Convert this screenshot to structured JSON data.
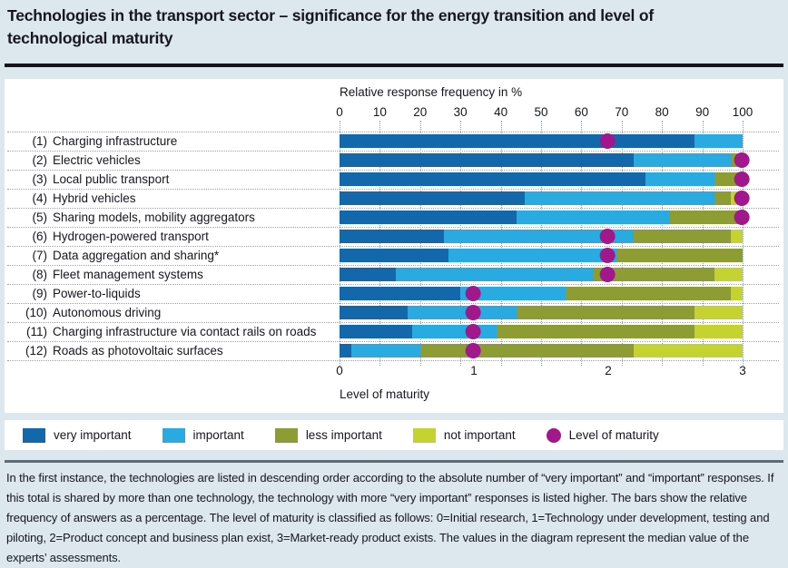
{
  "header": {
    "title": "Technologies in the transport sector – significance for the energy transition and level of technological maturity"
  },
  "chart_data": {
    "type": "bar",
    "orientation": "horizontal",
    "stacked": true,
    "grid": "dotted",
    "x_axis": {
      "label": "Relative response frequency in %",
      "ticks": [
        0,
        10,
        20,
        30,
        40,
        50,
        60,
        70,
        80,
        90,
        100
      ],
      "range": [
        0,
        100
      ]
    },
    "maturity_axis": {
      "label": "Level of maturity",
      "ticks": [
        0,
        1,
        2,
        3
      ],
      "range": [
        0,
        3
      ]
    },
    "series_names": [
      "very important",
      "important",
      "less important",
      "not important"
    ],
    "series_colors": [
      "#1268ab",
      "#29abe2",
      "#8e9d33",
      "#c5d330"
    ],
    "maturity_dot_color": "#a2178b",
    "rows": [
      {
        "num": "(1)",
        "name": "Charging infrastructure",
        "values": [
          88,
          12,
          0,
          0
        ],
        "maturity": 2
      },
      {
        "num": "(2)",
        "name": "Electric vehicles",
        "values": [
          73,
          24,
          3,
          0
        ],
        "maturity": 3
      },
      {
        "num": "(3)",
        "name": "Local public transport",
        "values": [
          76,
          17,
          7,
          0
        ],
        "maturity": 3
      },
      {
        "num": "(4)",
        "name": "Hybrid vehicles",
        "values": [
          46,
          47,
          4,
          3
        ],
        "maturity": 3
      },
      {
        "num": "(5)",
        "name": "Sharing models, mobility aggregators",
        "values": [
          44,
          38,
          18,
          0
        ],
        "maturity": 3
      },
      {
        "num": "(6)",
        "name": "Hydrogen-powered transport",
        "values": [
          26,
          47,
          24,
          3
        ],
        "maturity": 2
      },
      {
        "num": "(7)",
        "name": "Data aggregation and sharing*",
        "values": [
          27,
          42,
          31,
          0
        ],
        "maturity": 2
      },
      {
        "num": "(8)",
        "name": "Fleet management systems",
        "values": [
          14,
          49,
          30,
          7
        ],
        "maturity": 2
      },
      {
        "num": "(9)",
        "name": "Power-to-liquids",
        "values": [
          30,
          26,
          41,
          3
        ],
        "maturity": 1
      },
      {
        "num": "(10)",
        "name": "Autonomous driving",
        "values": [
          17,
          27,
          44,
          12
        ],
        "maturity": 1
      },
      {
        "num": "(11)",
        "name": "Charging infrastructure via contact rails on roads",
        "values": [
          18,
          21,
          49,
          12
        ],
        "maturity": 1
      },
      {
        "num": "(12)",
        "name": "Roads as photovoltaic surfaces",
        "values": [
          3,
          17,
          53,
          27
        ],
        "maturity": 1
      }
    ],
    "legend": [
      {
        "label": "very important",
        "shape": "swatch",
        "color": "#1268ab"
      },
      {
        "label": "important",
        "shape": "swatch",
        "color": "#29abe2"
      },
      {
        "label": "less important",
        "shape": "swatch",
        "color": "#8e9d33"
      },
      {
        "label": "not important",
        "shape": "swatch",
        "color": "#c5d330"
      },
      {
        "label": "Level of maturity",
        "shape": "dot",
        "color": "#a2178b"
      }
    ]
  },
  "footnote": {
    "text": "In the first instance, the technologies are listed in descending order according to the absolute number of “very important” and “important” responses. If this total is shared by more than one technology, the technology with more “very important” responses is listed higher. The bars show the relative frequency of answers as a percentage. The level of maturity is classified as follows: 0=Initial research, 1=Technology under development, testing and piloting, 2=Product concept and business plan exist, 3=Market-ready product exists. The values in the diagram represent the median value of the experts’ assessments."
  },
  "colors": {
    "page_background": "#dce8ed",
    "panel_background": "#ffffff",
    "text": "#16161f",
    "black_rule": "#15151b",
    "gray_rule": "#5d6c76",
    "grid_dotted": "#94a2ad"
  }
}
